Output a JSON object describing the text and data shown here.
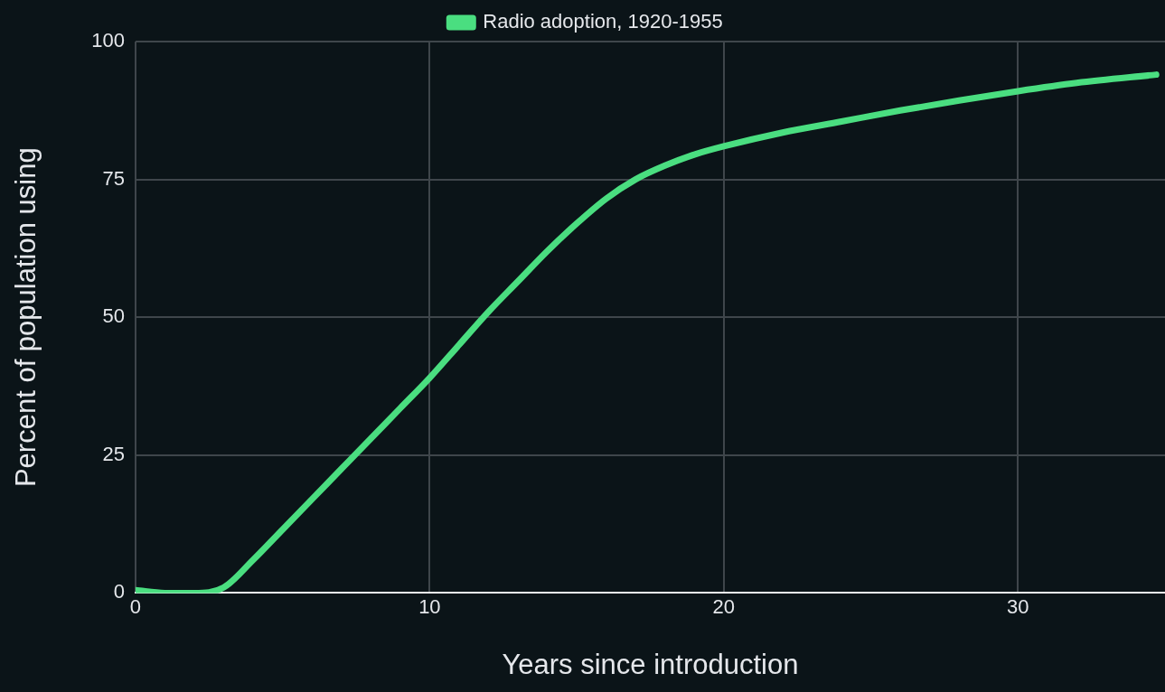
{
  "chart_data": {
    "type": "line",
    "xlabel": "Years since introduction",
    "ylabel": "Percent of population using",
    "x": [
      0,
      1,
      2,
      3,
      4,
      5,
      6,
      7,
      8,
      9,
      10,
      11,
      12,
      13,
      14,
      15,
      16,
      17,
      18,
      19,
      20,
      22,
      24,
      26,
      28,
      30,
      32,
      34.7
    ],
    "series": [
      {
        "name": "Radio adoption, 1920-1955",
        "color": "#4ade80",
        "values": [
          0.5,
          0,
          0,
          1,
          6,
          11.5,
          17,
          22.5,
          28,
          33.5,
          39,
          45,
          51,
          56.5,
          62,
          67,
          71.5,
          75,
          77.5,
          79.5,
          81,
          83.5,
          85.5,
          87.5,
          89.3,
          91,
          92.5,
          94
        ]
      }
    ],
    "xlim": [
      0,
      35
    ],
    "xticks": [
      0,
      10,
      20,
      30
    ],
    "ylim": [
      0,
      100
    ],
    "yticks": [
      0,
      25,
      50,
      75,
      100
    ],
    "grid": true,
    "legend": "top",
    "marker": "none",
    "line_style": "solid"
  }
}
